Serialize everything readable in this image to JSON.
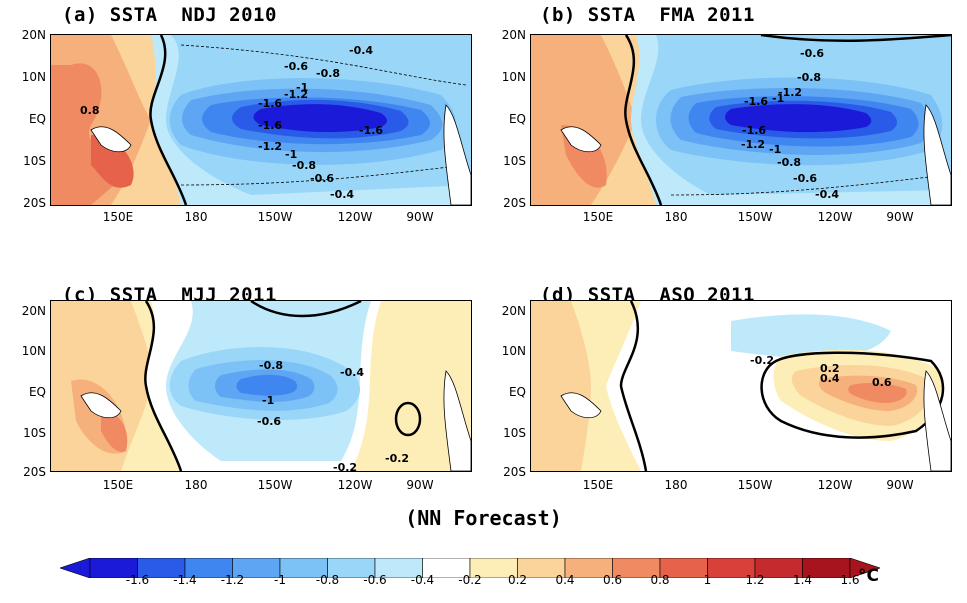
{
  "panels": [
    {
      "title": "(a) SSTA  NDJ 2010",
      "contour_labels": [
        "-0.4",
        "-0.6",
        "-0.8",
        "-1.6",
        "-1.2",
        "-1",
        "-1.6",
        "-1.2",
        "-1",
        "-0.8",
        "-0.6",
        "-0.4",
        "0.8",
        "-1.6"
      ]
    },
    {
      "title": "(b) SSTA  FMA 2011",
      "contour_labels": [
        "-0.6",
        "-0.8",
        "-1.2",
        "-1.6",
        "-1",
        "-1.2",
        "-1",
        "-0.8",
        "-0.6",
        "-0.4",
        "-1.6"
      ]
    },
    {
      "title": "(c) SSTA  MJJ 2011",
      "contour_labels": [
        "-0.8",
        "-0.4",
        "-1",
        "-0.6",
        "-0.2",
        "-0.2"
      ]
    },
    {
      "title": "(d) SSTA  ASO 2011",
      "contour_labels": [
        "-0.2",
        "0.2",
        "0.4",
        "0.6"
      ]
    }
  ],
  "axes": {
    "y_ticks": [
      "20N",
      "10N",
      "EQ",
      "10S",
      "20S"
    ],
    "x_ticks": [
      "150E",
      "180",
      "150W",
      "120W",
      "90W"
    ]
  },
  "footer": {
    "caption": "(NN Forecast)"
  },
  "colorbar": {
    "labels": [
      "-1.6",
      "-1.4",
      "-1.2",
      "-1",
      "-0.8",
      "-0.6",
      "-0.4",
      "-0.2",
      "0.2",
      "0.4",
      "0.6",
      "0.8",
      "1",
      "1.2",
      "1.4",
      "1.6"
    ],
    "unit": "°C",
    "colors": [
      "#1a1ad8",
      "#2a5ae8",
      "#3f86f0",
      "#5ea6f3",
      "#7cc2f6",
      "#9ad6f8",
      "#bde9fb",
      "#ffffff",
      "#fdeeb8",
      "#fbd49b",
      "#f6b07b",
      "#f08a62",
      "#e7624b",
      "#d8413a",
      "#c42a2e",
      "#a8141e"
    ]
  }
}
